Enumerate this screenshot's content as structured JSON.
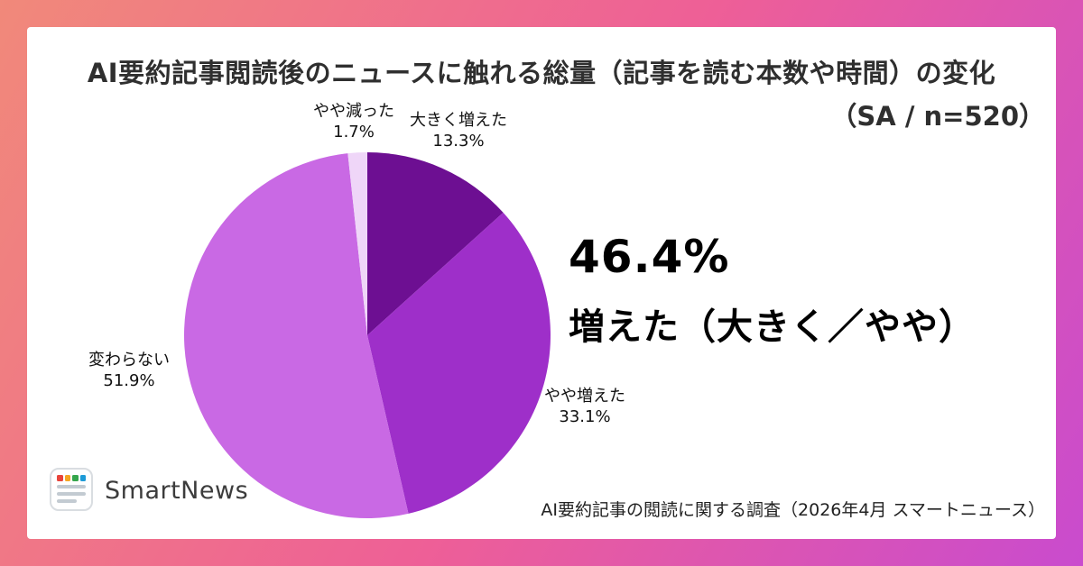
{
  "header": {
    "title": "AI要約記事閲読後のニュースに触れる総量（記事を読む本数や時間）の変化",
    "subtitle": "（SA / n=520）"
  },
  "highlight": {
    "percent": "46.4%",
    "label": "増えた（大きく／やや）"
  },
  "chart_data": {
    "type": "pie",
    "title": "AI要約記事閲読後のニュースに触れる総量（記事を読む本数や時間）の変化（SA / n=520）",
    "start_angle_deg": -90,
    "direction": "clockwise",
    "segments": [
      {
        "label": "大きく増えた",
        "value": 13.3,
        "value_label": "13.3%",
        "color": "#6d0f92"
      },
      {
        "label": "やや増えた",
        "value": 33.1,
        "value_label": "33.1%",
        "color": "#9e2fc9"
      },
      {
        "label": "変わらない",
        "value": 51.9,
        "value_label": "51.9%",
        "color": "#c969e4"
      },
      {
        "label": "やや減った",
        "value": 1.7,
        "value_label": "1.7%",
        "color": "#efd6f8"
      }
    ]
  },
  "footer": {
    "brand": "SmartNews",
    "source": "AI要約記事の閲読に関する調査（2026年4月 スマートニュース）",
    "logo_colors": [
      "#e8453c",
      "#f5a623",
      "#35a64c",
      "#1d9bd7"
    ]
  }
}
